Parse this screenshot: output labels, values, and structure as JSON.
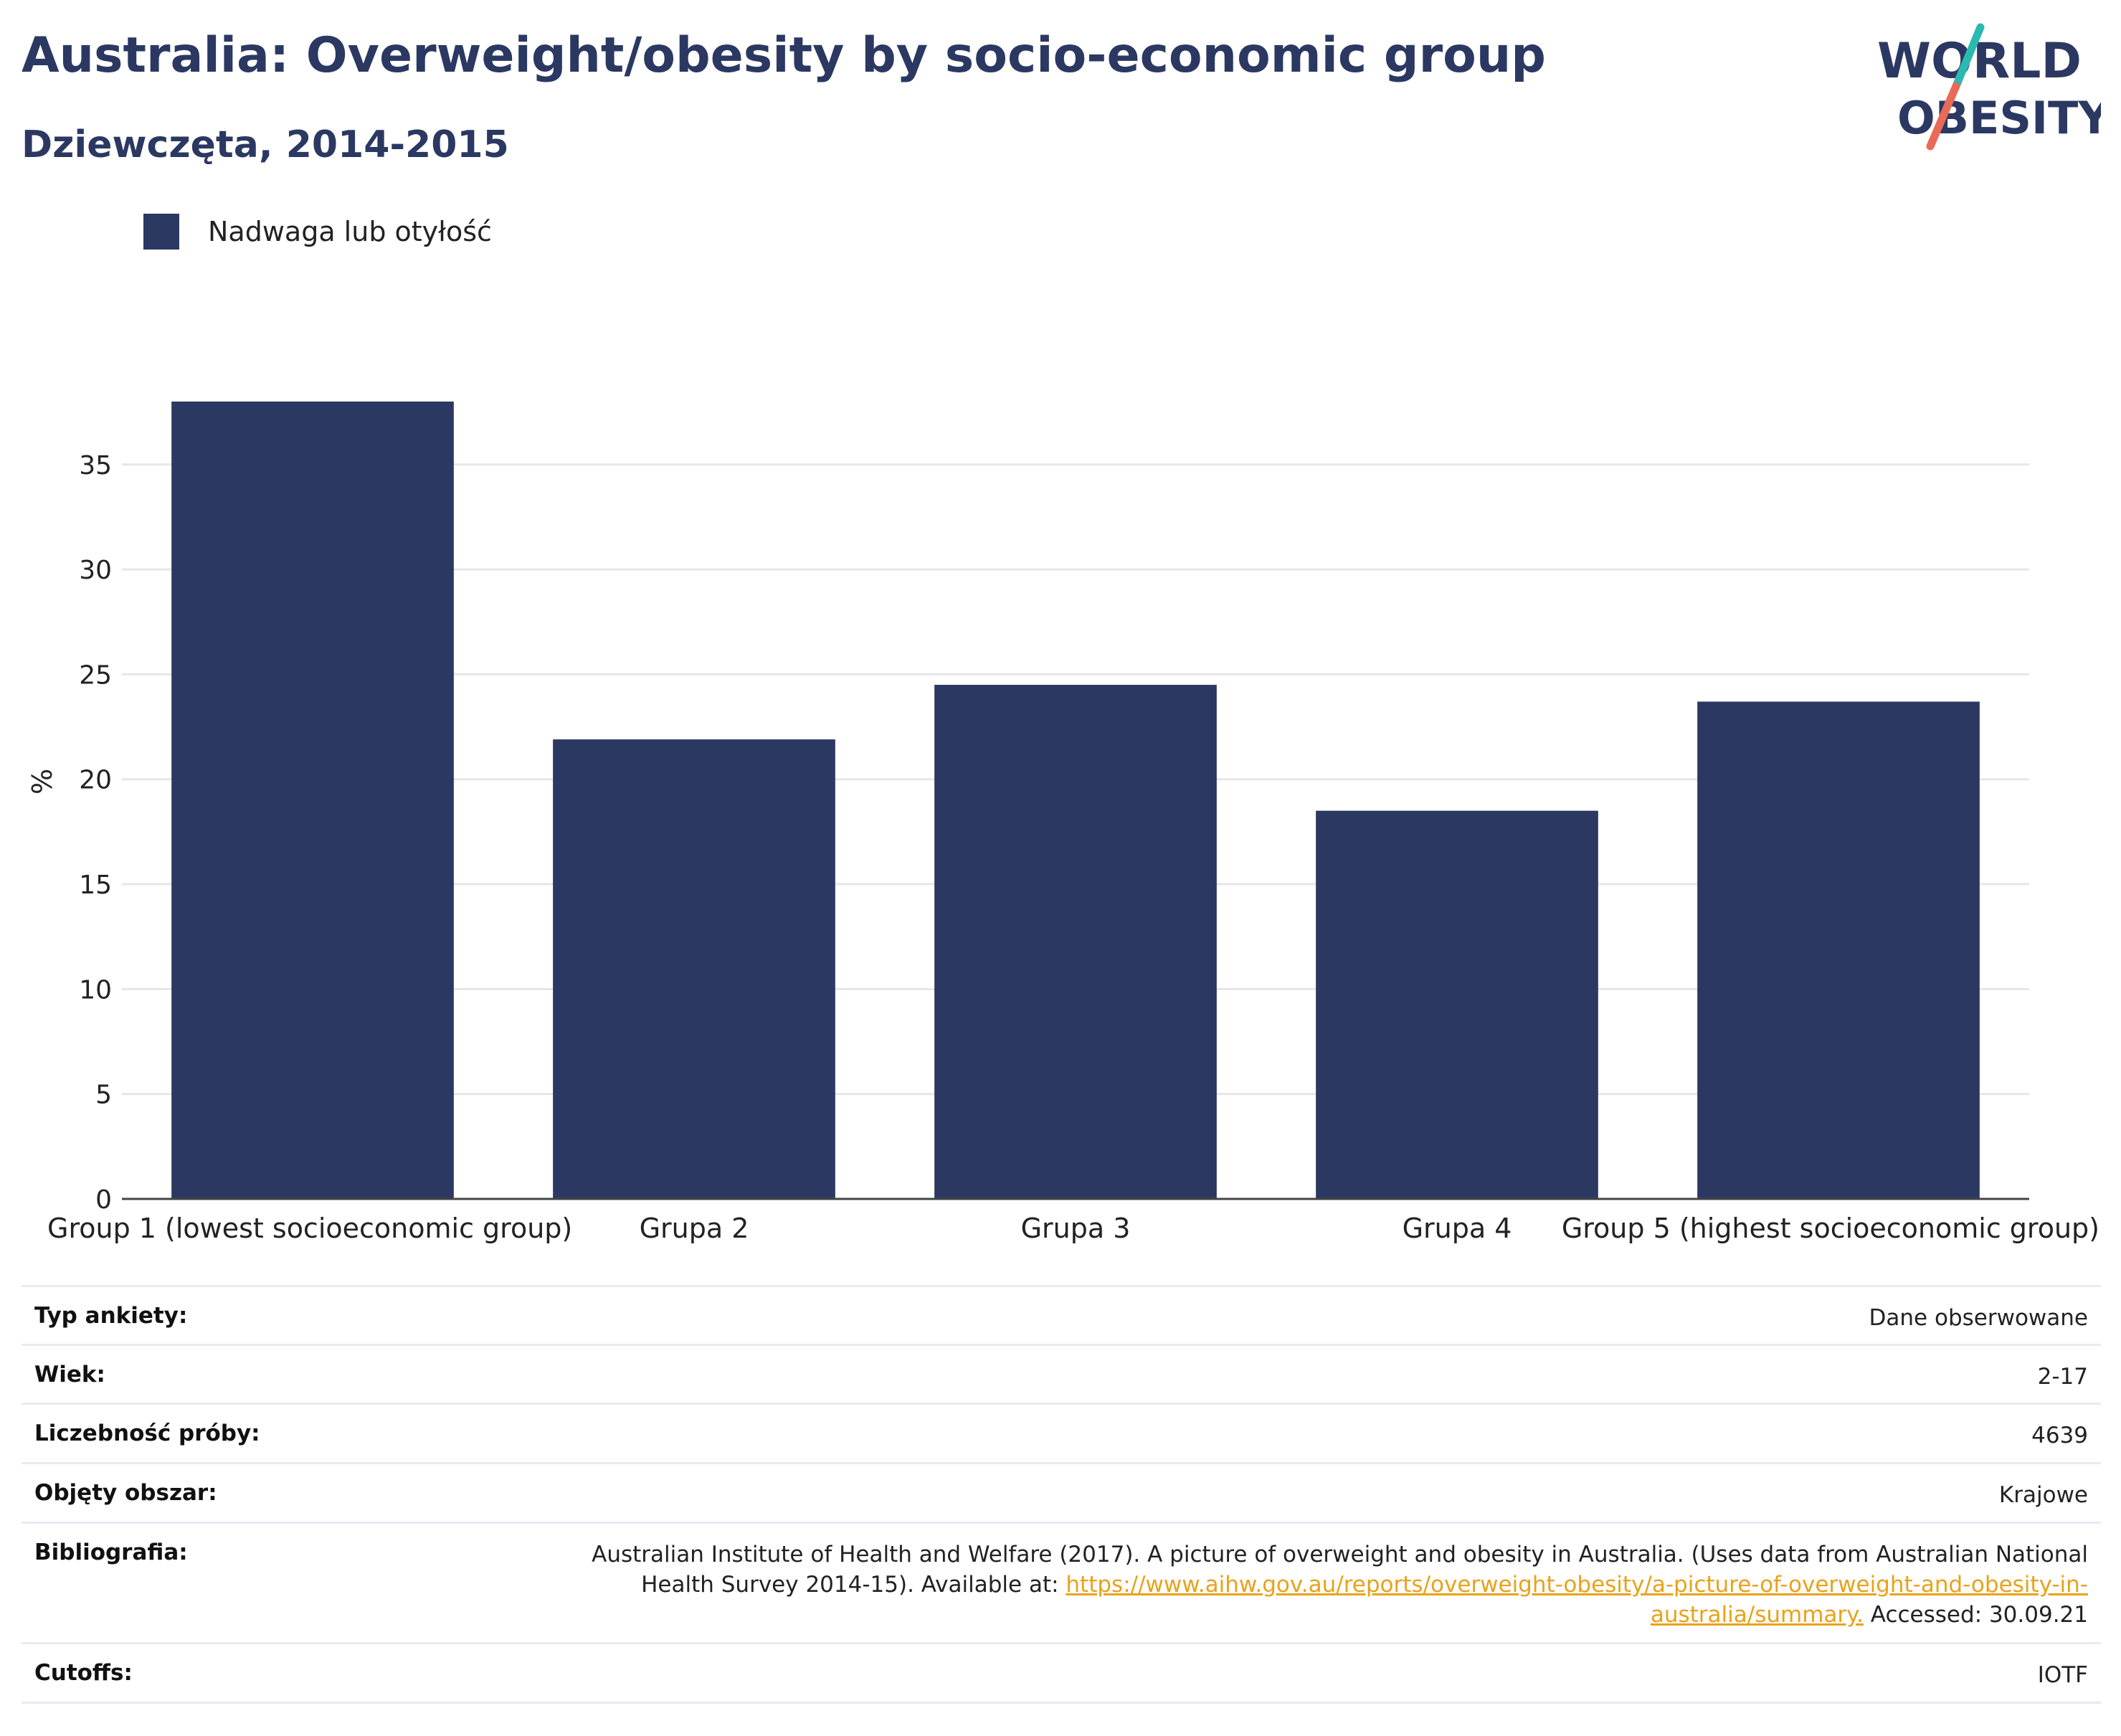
{
  "title": "Australia: Overweight/obesity by socio-economic group",
  "subtitle": "Dziewczęta, 2014-2015",
  "logo": {
    "line1": "WORLD",
    "line2": "OBESITY",
    "colors": {
      "text": "#2b3862",
      "slash_top": "#2bbab1",
      "slash_bottom": "#e96a56"
    }
  },
  "colors": {
    "bar": "#2b3862",
    "grid": "#e6e6e6",
    "axis": "#444444",
    "link": "#e9a21b"
  },
  "chart_data": {
    "type": "bar",
    "categories": [
      "Group 1 (lowest socioeconomic group)",
      "Grupa 2",
      "Grupa 3",
      "Grupa 4",
      "Group 5 (highest socioeconomic group)"
    ],
    "series": [
      {
        "name": "Nadwaga lub otyłość",
        "values": [
          38.0,
          21.9,
          24.5,
          18.5,
          23.7
        ]
      }
    ],
    "ylabel": "%",
    "ylim": [
      0,
      38
    ],
    "yticks": [
      0,
      5,
      10,
      15,
      20,
      25,
      30,
      35
    ],
    "grid": true,
    "legend": "top-left"
  },
  "info": [
    {
      "key": "Typ ankiety:",
      "value": "Dane obserwowane"
    },
    {
      "key": "Wiek:",
      "value": "2-17"
    },
    {
      "key": "Liczebność próby:",
      "value": "4639"
    },
    {
      "key": "Objęty obszar:",
      "value": "Krajowe"
    },
    {
      "key": "Bibliografia:",
      "value_pre": "Australian Institute of Health and Welfare (2017). A picture of overweight and obesity in Australia. (Uses data from Australian National Health Survey 2014-15). Available at: ",
      "value_link": "https://www.aihw.gov.au/reports/overweight-obesity/a-picture-of-overweight-and-obesity-in-australia/summary.",
      "value_post": " Accessed: 30.09.21"
    },
    {
      "key": "Cutoffs:",
      "value": "IOTF"
    }
  ]
}
